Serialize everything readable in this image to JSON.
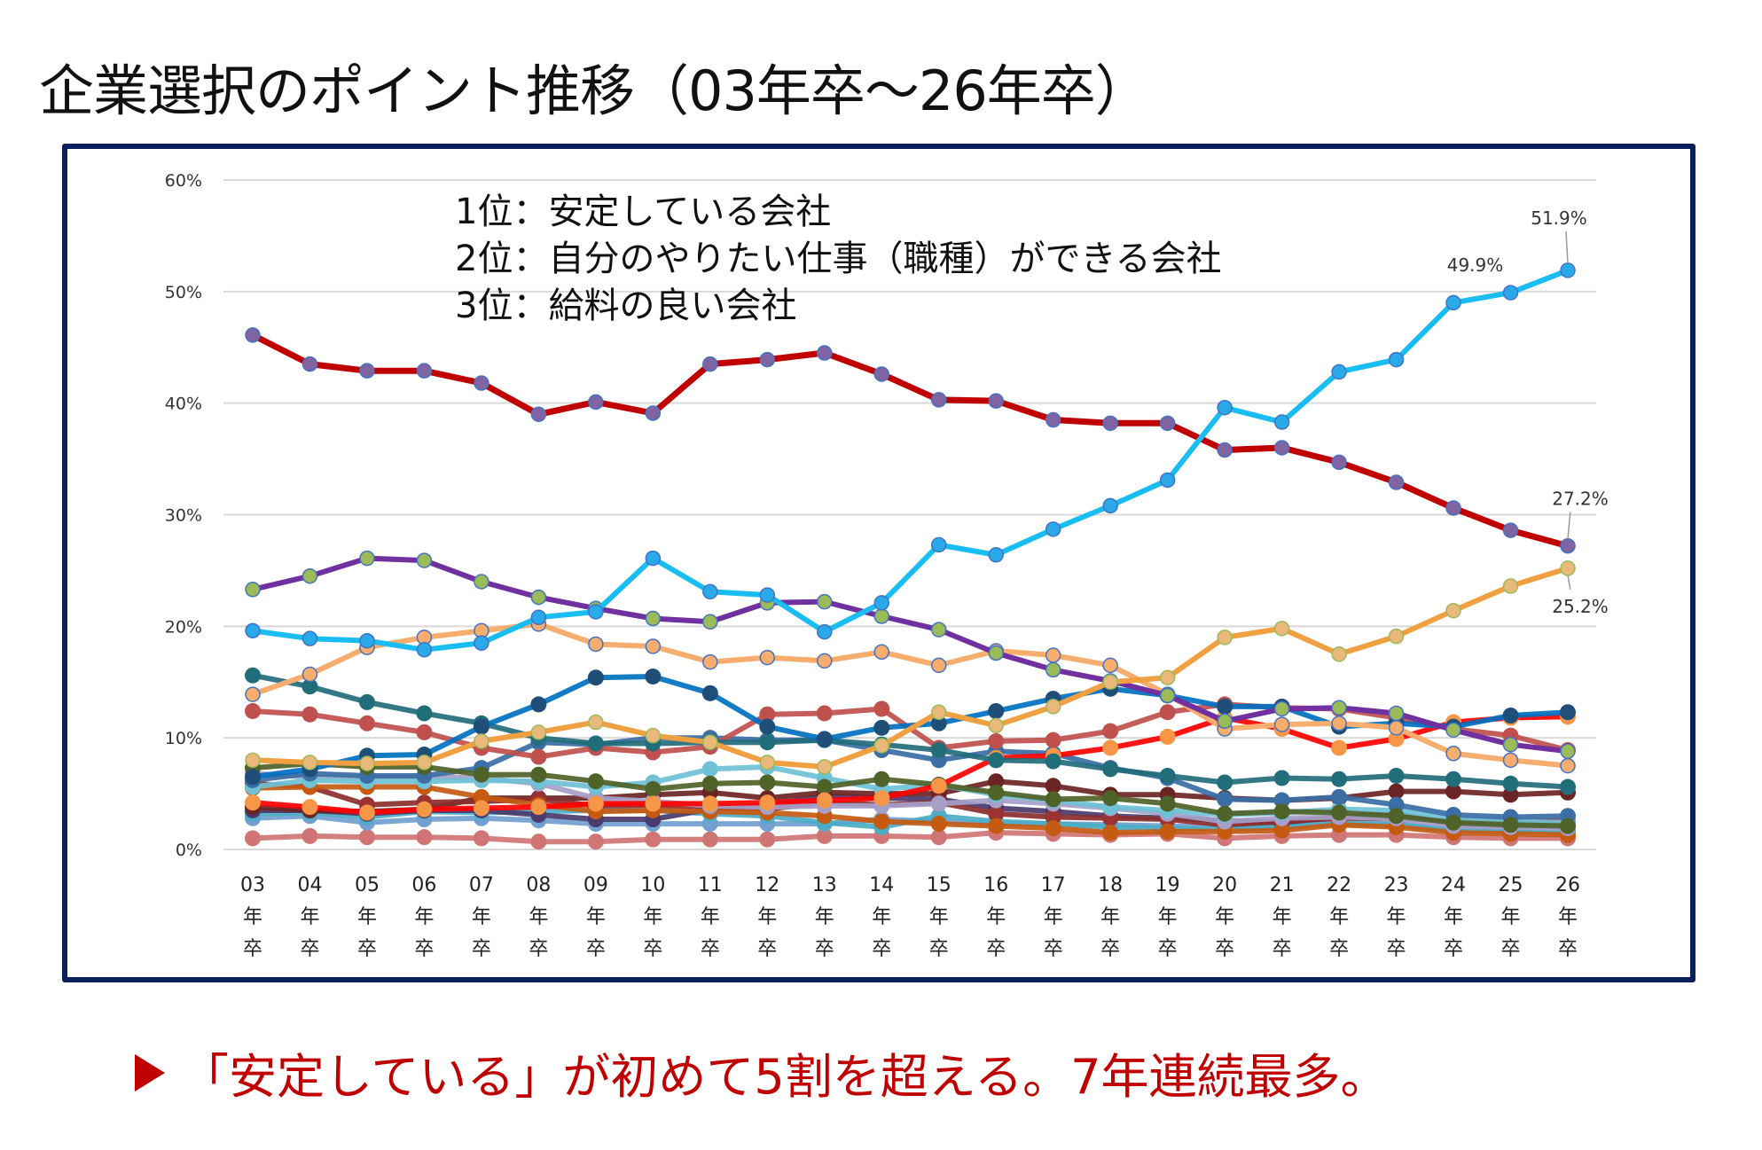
{
  "page": {
    "title": "企業選択のポイント推移（03年卒～26年卒）",
    "footer": "「安定している」が初めて5割を超える。7年連続最多。",
    "frame_color": "#0a1f5c",
    "footer_color": "#c00000"
  },
  "chart_data": {
    "type": "line",
    "title": "企業選択のポイント推移（03年卒～26年卒）",
    "xlabel": "",
    "ylabel": "",
    "ylim": [
      0,
      60
    ],
    "yticks": [
      "0%",
      "10%",
      "20%",
      "30%",
      "40%",
      "50%",
      "60%"
    ],
    "grid": true,
    "legend": "none",
    "annotations": [
      "1位：安定している会社",
      "2位：自分のやりたい仕事（職種）ができる会社",
      "3位：給料の良い会社"
    ],
    "categories": [
      "03",
      "04",
      "05",
      "06",
      "07",
      "08",
      "09",
      "10",
      "11",
      "12",
      "13",
      "14",
      "15",
      "16",
      "17",
      "18",
      "19",
      "20",
      "21",
      "22",
      "23",
      "24",
      "25",
      "26"
    ],
    "category_suffix": [
      "年",
      "卒"
    ],
    "data_labels": [
      {
        "series": "安定している会社",
        "index": 23,
        "text": "51.9%"
      },
      {
        "series": "安定している会社",
        "index": 22,
        "text": "49.9%"
      },
      {
        "series": "自分のやりたい仕事（職種）ができる会社",
        "index": 23,
        "text": "27.2%"
      },
      {
        "series": "給料の良い会社",
        "index": 23,
        "text": "25.2%"
      }
    ],
    "series": [
      {
        "name": "安定している会社",
        "color": "#19bdf2",
        "marker": "#29a9e8",
        "width": 6,
        "values": [
          19.6,
          18.9,
          18.7,
          17.9,
          18.5,
          20.8,
          21.3,
          26.1,
          23.1,
          22.8,
          19.5,
          22.1,
          27.3,
          26.4,
          28.7,
          30.8,
          33.1,
          39.6,
          38.3,
          42.8,
          43.9,
          49.0,
          49.9,
          51.9
        ]
      },
      {
        "name": "自分のやりたい仕事（職種）ができる会社",
        "color": "#c00000",
        "marker": "#8064a2",
        "width": 7,
        "values": [
          46.1,
          43.5,
          42.9,
          42.9,
          41.8,
          39.0,
          40.1,
          39.1,
          43.5,
          43.9,
          44.5,
          42.6,
          40.3,
          40.2,
          38.5,
          38.2,
          38.2,
          35.8,
          36.0,
          34.7,
          32.9,
          30.6,
          28.6,
          27.2
        ]
      },
      {
        "name": "給料の良い会社",
        "color": "#f0a040",
        "marker": "#e9b87a",
        "marker_stroke": "#9bbb59",
        "width": 6,
        "values": [
          8.0,
          7.8,
          7.7,
          7.8,
          9.7,
          10.5,
          11.4,
          10.2,
          9.6,
          7.8,
          7.4,
          9.3,
          12.3,
          11.1,
          12.8,
          15.0,
          15.4,
          19.0,
          19.8,
          17.5,
          19.1,
          21.4,
          23.6,
          25.2
        ]
      },
      {
        "name": "series-4",
        "color": "#7030a0",
        "marker": "#9bbb59",
        "width": 6,
        "values": [
          23.3,
          24.5,
          26.1,
          25.9,
          24.0,
          22.6,
          21.6,
          20.7,
          20.4,
          22.1,
          22.2,
          20.9,
          19.7,
          17.6,
          16.1,
          15.1,
          13.8,
          11.5,
          12.6,
          12.7,
          12.2,
          10.7,
          9.4,
          8.8
        ]
      },
      {
        "name": "series-5",
        "color": "#f6ad6e",
        "marker": "#f6ad6e",
        "width": 6,
        "values": [
          13.9,
          15.7,
          18.1,
          19.0,
          19.6,
          20.2,
          18.4,
          18.2,
          16.8,
          17.2,
          16.9,
          17.7,
          16.5,
          17.8,
          17.4,
          16.5,
          13.9,
          10.8,
          11.2,
          11.3,
          10.9,
          8.6,
          8.0,
          7.5
        ]
      },
      {
        "name": "series-6",
        "color": "#0070c0",
        "marker": "#1f4e79",
        "width": 6,
        "values": [
          6.5,
          7.2,
          8.4,
          8.5,
          11.0,
          13.0,
          15.4,
          15.5,
          14.0,
          11.0,
          9.9,
          10.9,
          11.3,
          12.4,
          13.5,
          14.4,
          13.8,
          12.8,
          12.8,
          11.0,
          11.3,
          11.0,
          12.0,
          12.3
        ]
      },
      {
        "name": "series-7",
        "color": "#226d7a",
        "marker": "#226d7a",
        "width": 6,
        "values": [
          15.6,
          14.6,
          13.2,
          12.2,
          11.3,
          10.0,
          9.5,
          9.5,
          9.6,
          9.6,
          9.8,
          9.4,
          8.9,
          8.0,
          7.9,
          7.2,
          6.6,
          6.0,
          6.4,
          6.3,
          6.6,
          6.3,
          5.9,
          5.6
        ]
      },
      {
        "name": "series-8",
        "color": "#c0504d",
        "marker": "#c0504d",
        "width": 6,
        "values": [
          12.4,
          12.1,
          11.3,
          10.5,
          9.1,
          8.3,
          9.1,
          8.7,
          9.2,
          12.1,
          12.2,
          12.6,
          9.1,
          9.7,
          9.8,
          10.6,
          12.3,
          13.0,
          12.7,
          12.6,
          11.8,
          10.8,
          10.2,
          8.9
        ]
      },
      {
        "name": "series-9",
        "color": "#ff0000",
        "marker": "#f79646",
        "width": 6,
        "values": [
          4.2,
          3.8,
          3.3,
          3.6,
          3.7,
          3.8,
          4.1,
          4.1,
          4.1,
          4.2,
          4.4,
          4.6,
          5.7,
          8.2,
          8.4,
          9.1,
          10.1,
          11.8,
          10.8,
          9.1,
          9.9,
          11.4,
          11.8,
          11.9
        ]
      },
      {
        "name": "series-10",
        "color": "#4f6228",
        "marker": "#4f6228",
        "width": 6,
        "values": [
          7.3,
          7.7,
          7.4,
          7.4,
          6.7,
          6.7,
          6.1,
          5.4,
          5.9,
          6.0,
          5.6,
          6.3,
          5.8,
          5.1,
          4.5,
          4.6,
          4.1,
          3.2,
          3.4,
          3.3,
          3.0,
          2.4,
          2.2,
          2.1
        ]
      },
      {
        "name": "series-11",
        "color": "#3a6ea5",
        "marker": "#3a6ea5",
        "width": 6,
        "values": [
          6.2,
          6.8,
          6.6,
          6.6,
          7.3,
          9.6,
          9.4,
          10.0,
          10.0,
          9.8,
          9.8,
          8.9,
          8.0,
          8.8,
          8.6,
          7.3,
          6.4,
          4.5,
          4.4,
          4.7,
          4.0,
          3.1,
          2.9,
          3.0
        ]
      },
      {
        "name": "series-12",
        "color": "#6fc1d6",
        "marker": "#6fc1d6",
        "width": 6,
        "values": [
          5.6,
          6.2,
          6.1,
          6.1,
          6.2,
          6.1,
          5.6,
          6.0,
          7.2,
          7.4,
          6.4,
          5.4,
          5.8,
          4.9,
          4.4,
          3.8,
          3.5,
          3.1,
          3.3,
          3.6,
          3.5,
          2.7,
          2.5,
          2.4
        ]
      },
      {
        "name": "series-13",
        "color": "#a6a0c9",
        "marker": "#a6a0c9",
        "width": 6,
        "values": [
          6.8,
          6.5,
          6.5,
          6.5,
          6.4,
          5.9,
          4.6,
          4.3,
          3.9,
          3.8,
          3.9,
          3.9,
          4.1,
          4.4,
          4.1,
          3.7,
          3.2,
          2.5,
          2.8,
          2.9,
          2.8,
          2.1,
          2.0,
          1.9
        ]
      },
      {
        "name": "series-14",
        "color": "#c55a11",
        "marker": "#c55a11",
        "width": 6,
        "values": [
          5.5,
          5.6,
          5.6,
          5.6,
          4.7,
          4.0,
          3.4,
          3.5,
          3.4,
          3.3,
          3.0,
          2.5,
          2.3,
          2.1,
          1.9,
          1.5,
          1.6,
          1.6,
          1.7,
          2.2,
          2.0,
          1.5,
          1.4,
          1.3
        ]
      },
      {
        "name": "series-15",
        "color": "#8b2e2e",
        "marker": "#9b3333",
        "width": 6,
        "values": [
          5.9,
          5.6,
          4.0,
          4.2,
          4.3,
          4.5,
          3.9,
          4.0,
          3.7,
          3.6,
          4.2,
          4.0,
          4.2,
          3.2,
          2.9,
          2.8,
          2.7,
          2.2,
          2.5,
          2.8,
          2.8,
          2.5,
          2.5,
          2.5
        ]
      },
      {
        "name": "series-16",
        "color": "#6b2424",
        "marker": "#6b2424",
        "width": 6,
        "values": [
          3.8,
          3.5,
          3.4,
          3.6,
          4.6,
          4.6,
          4.6,
          4.9,
          5.1,
          4.6,
          5.1,
          5.0,
          5.0,
          6.1,
          5.7,
          4.9,
          4.9,
          4.6,
          4.4,
          4.6,
          5.2,
          5.2,
          4.9,
          5.1
        ]
      },
      {
        "name": "series-17",
        "color": "#4b3a6e",
        "marker": "#4b3a6e",
        "width": 6,
        "values": [
          3.5,
          3.5,
          3.2,
          3.5,
          3.5,
          3.1,
          2.7,
          2.7,
          3.6,
          4.0,
          4.8,
          4.6,
          4.5,
          3.7,
          3.4,
          3.0,
          2.8,
          2.6,
          2.4,
          2.9,
          3.2,
          2.3,
          2.1,
          2.1
        ]
      },
      {
        "name": "series-18",
        "color": "#4bacc6",
        "marker": "#4bacc6",
        "width": 6,
        "values": [
          3.2,
          3.3,
          2.9,
          3.4,
          3.3,
          3.4,
          3.5,
          3.5,
          3.2,
          3.0,
          2.4,
          2.0,
          3.0,
          2.5,
          2.3,
          2.0,
          1.9,
          1.8,
          2.0,
          2.3,
          2.2,
          1.7,
          1.6,
          1.6
        ]
      },
      {
        "name": "series-19",
        "color": "#729fcf",
        "marker": "#729fcf",
        "width": 6,
        "values": [
          2.8,
          3.0,
          2.4,
          2.7,
          2.8,
          2.6,
          2.3,
          2.3,
          2.3,
          2.3,
          2.3,
          2.7,
          2.5,
          2.3,
          2.3,
          2.2,
          2.1,
          2.0,
          2.1,
          2.4,
          2.3,
          1.9,
          1.8,
          1.8
        ]
      },
      {
        "name": "series-20",
        "color": "#d07575",
        "marker": "#d07575",
        "width": 6,
        "values": [
          1.0,
          1.2,
          1.1,
          1.1,
          1.0,
          0.7,
          0.7,
          0.9,
          0.9,
          0.9,
          1.2,
          1.2,
          1.1,
          1.5,
          1.4,
          1.3,
          1.4,
          1.0,
          1.2,
          1.3,
          1.3,
          1.1,
          1.0,
          1.0
        ]
      }
    ]
  }
}
